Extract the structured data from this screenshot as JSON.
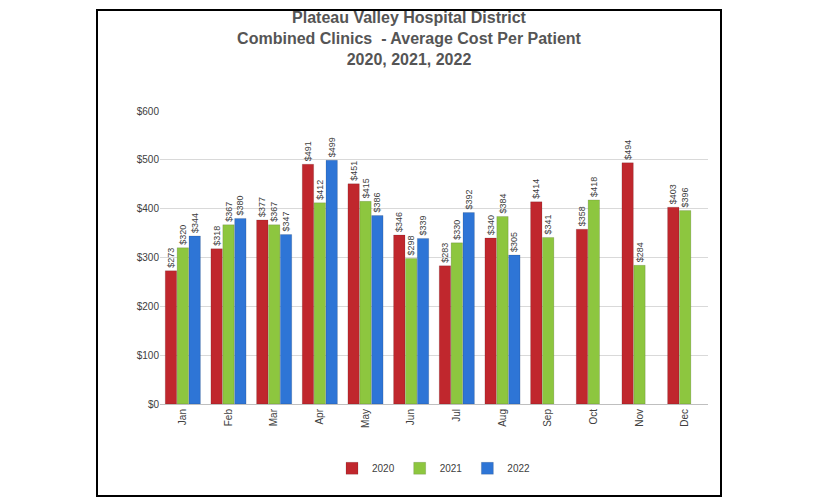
{
  "chart_data": {
    "type": "bar",
    "title": "Plateau Valley Hospital District\nCombined Clinics  - Average Cost Per Patient\n2020, 2021, 2022",
    "categories": [
      "Jan",
      "Feb",
      "Mar",
      "Apr",
      "May",
      "Jun",
      "Jul",
      "Aug",
      "Sep",
      "Oct",
      "Nov",
      "Dec"
    ],
    "series": [
      {
        "name": "2020",
        "color": "#c0272d",
        "values": [
          273,
          318,
          377,
          491,
          451,
          346,
          283,
          340,
          414,
          358,
          494,
          403
        ],
        "value_labels": [
          "$273",
          "$318",
          "$377",
          "$491",
          "$451",
          "$346",
          "$283",
          "$340",
          "$414",
          "$358",
          "$494",
          "$403"
        ]
      },
      {
        "name": "2021",
        "color": "#8dc63f",
        "values": [
          320,
          367,
          367,
          412,
          415,
          298,
          330,
          384,
          341,
          418,
          284,
          396
        ],
        "value_labels": [
          "$320",
          "$367",
          "$367",
          "$412",
          "$415",
          "$298",
          "$330",
          "$384",
          "$341",
          "$418",
          "$284",
          "$396"
        ]
      },
      {
        "name": "2022",
        "color": "#2e75d6",
        "values": [
          344,
          380,
          347,
          499,
          386,
          339,
          392,
          305,
          null,
          null,
          null,
          null
        ],
        "value_labels": [
          "$344",
          "$380",
          "$347",
          "$499",
          "$386",
          "$339",
          "$392",
          "$305",
          null,
          null,
          null,
          null
        ]
      }
    ],
    "ylim": [
      0,
      600
    ],
    "yticks": [
      {
        "value": 0,
        "label": "$0"
      },
      {
        "value": 100,
        "label": "$100"
      },
      {
        "value": 200,
        "label": "$200"
      },
      {
        "value": 300,
        "label": "$300"
      },
      {
        "value": 400,
        "label": "$400"
      },
      {
        "value": 500,
        "label": "$500"
      },
      {
        "value": 600,
        "label": "$600"
      }
    ],
    "grid": true,
    "legend": "bottom",
    "data_labels": true
  }
}
